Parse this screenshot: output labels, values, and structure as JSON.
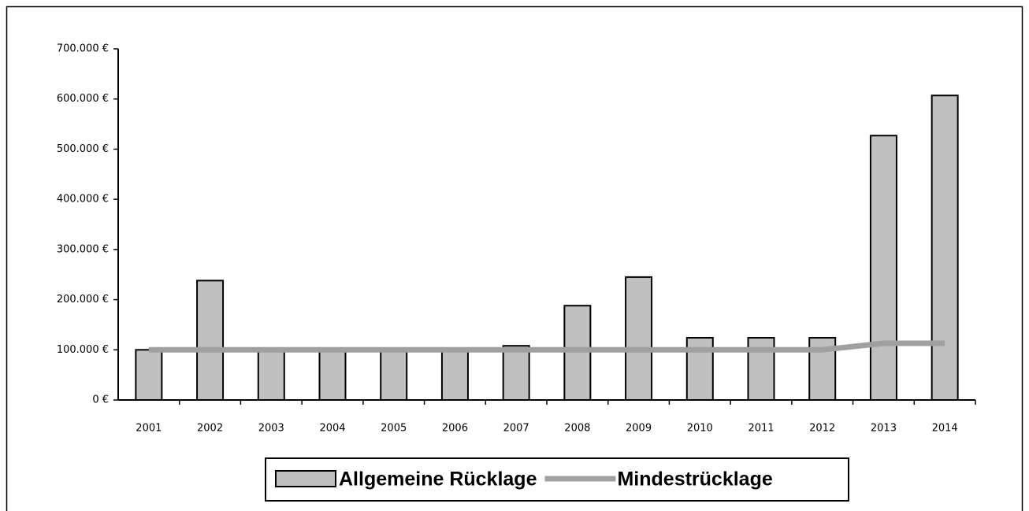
{
  "chart_data": {
    "type": "bar",
    "categories": [
      "2001",
      "2002",
      "2003",
      "2004",
      "2005",
      "2006",
      "2007",
      "2008",
      "2009",
      "2010",
      "2011",
      "2012",
      "2013",
      "2014"
    ],
    "series": [
      {
        "name": "Allgemeine Rücklage",
        "type": "bar",
        "color": "#c0c0c0",
        "values": [
          100000,
          238000,
          100000,
          100000,
          100000,
          100000,
          108000,
          188000,
          245000,
          124000,
          124000,
          124000,
          527000,
          607000
        ]
      },
      {
        "name": "Mindestrücklage",
        "type": "line",
        "color": "#a0a0a0",
        "values": [
          100000,
          100000,
          100000,
          100000,
          100000,
          100000,
          100000,
          100000,
          100000,
          100000,
          100000,
          100000,
          113000,
          113000
        ]
      }
    ],
    "ylim": [
      0,
      700000
    ],
    "yticks": [
      {
        "value": 0,
        "label": "0 €"
      },
      {
        "value": 100000,
        "label": "100.000 €"
      },
      {
        "value": 200000,
        "label": "200.000 €"
      },
      {
        "value": 300000,
        "label": "300.000 €"
      },
      {
        "value": 400000,
        "label": "400.000 €"
      },
      {
        "value": 500000,
        "label": "500.000 €"
      },
      {
        "value": 600000,
        "label": "600.000 €"
      },
      {
        "value": 700000,
        "label": "700.000 €"
      }
    ],
    "legend": "bottom"
  }
}
